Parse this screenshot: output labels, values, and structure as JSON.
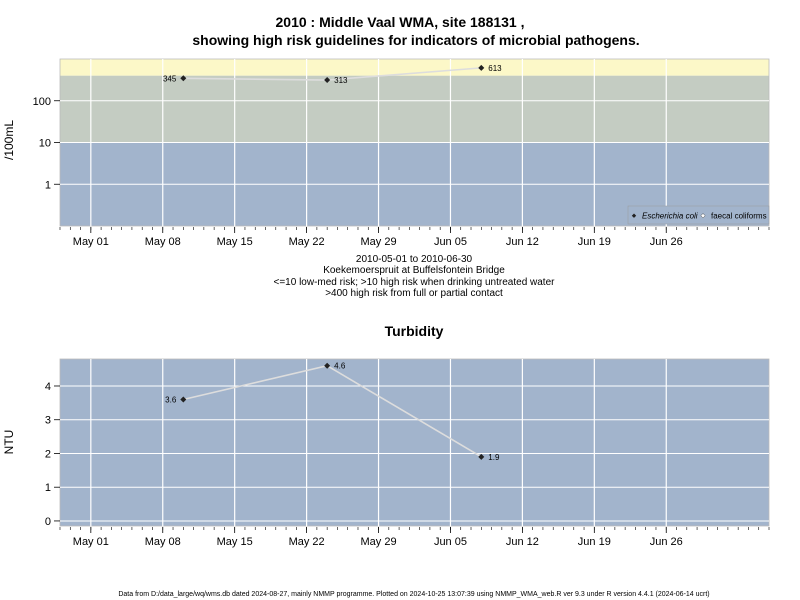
{
  "chart_data": [
    {
      "type": "line",
      "title": "2010 : Middle Vaal WMA, site 188131 ,",
      "title_line2": "showing high risk guidelines for indicators of microbial pathogens.",
      "ylabel": "/100mL",
      "yscale": "log",
      "yticks": [
        1,
        10,
        100
      ],
      "ytick_labels": [
        "1",
        "10",
        "100"
      ],
      "x_tick_labels": [
        "May 01",
        "May 08",
        "May 15",
        "May 22",
        "May 29",
        "Jun 05",
        "Jun 12",
        "Jun 19",
        "Jun 26"
      ],
      "x_tick_dates": [
        "2010-05-01",
        "2010-05-08",
        "2010-05-15",
        "2010-05-22",
        "2010-05-29",
        "2010-06-05",
        "2010-06-12",
        "2010-06-19",
        "2010-06-26"
      ],
      "xlim": [
        "2010-04-28",
        "2010-07-06"
      ],
      "ylim": [
        0.1,
        1000
      ],
      "guideline_bands": [
        {
          "from": 0.1,
          "to": 10,
          "color": "#a2b4cc"
        },
        {
          "from": 10,
          "to": 400,
          "color": "#c4ccc2"
        },
        {
          "from": 400,
          "to": 1000,
          "color": "#fcf8c8"
        }
      ],
      "series": [
        {
          "name": "Escherichia coli",
          "x": [
            "2010-05-10",
            "2010-05-24",
            "2010-06-08"
          ],
          "values": [
            345,
            313,
            613
          ],
          "labels": [
            "345",
            "313",
            "613"
          ]
        }
      ],
      "legend": [
        "Escherichia coli",
        "faecal coliforms"
      ],
      "legend_position": "bottom-right",
      "caption_lines": [
        "2010-05-01 to 2010-06-30",
        "Koekemoerspruit at Buffelsfontein Bridge",
        "<=10 low-med risk; >10 high risk when drinking untreated water",
        ">400 high risk from full or partial contact"
      ],
      "grid": true
    },
    {
      "type": "line",
      "title": "Turbidity",
      "ylabel": "NTU",
      "yticks": [
        0,
        1,
        2,
        3,
        4
      ],
      "ytick_labels": [
        "0",
        "1",
        "2",
        "3",
        "4"
      ],
      "x_tick_labels": [
        "May 01",
        "May 08",
        "May 15",
        "May 22",
        "May 29",
        "Jun 05",
        "Jun 12",
        "Jun 19",
        "Jun 26"
      ],
      "x_tick_dates": [
        "2010-05-01",
        "2010-05-08",
        "2010-05-15",
        "2010-05-22",
        "2010-05-29",
        "2010-06-05",
        "2010-06-12",
        "2010-06-19",
        "2010-06-26"
      ],
      "xlim": [
        "2010-04-28",
        "2010-07-06"
      ],
      "ylim": [
        -0.15,
        4.8
      ],
      "series": [
        {
          "name": "",
          "x": [
            "2010-05-10",
            "2010-05-24",
            "2010-06-08"
          ],
          "values": [
            3.6,
            4.6,
            1.9
          ],
          "labels": [
            "3.6",
            "4.6",
            "1.9"
          ]
        }
      ],
      "panel_color": "#a2b4cc",
      "grid": true
    }
  ],
  "footer": "Data from D:/data_large/wq/wms.db dated 2024-08-27, mainly NMMP programme. Plotted on 2024-10-25 13:07:39 using NMMP_WMA_web.R ver 9.3 under R version 4.4.1 (2024-06-14 ucrt)",
  "colors": {
    "point": "#222222",
    "line": "#dddddd",
    "grid": "#ffffff",
    "panel_border": "#bbbbbb"
  }
}
